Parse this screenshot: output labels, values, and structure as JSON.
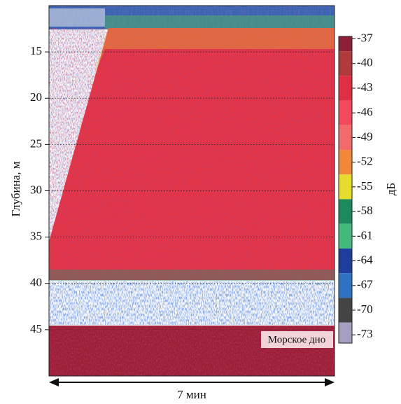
{
  "chart_data": {
    "type": "echogram",
    "ylabel": "Глубина, м",
    "xlabel": "7 мин",
    "ylim": [
      50,
      10
    ],
    "yticks": [
      15,
      20,
      25,
      30,
      35,
      40,
      45
    ],
    "grid": true,
    "colorbar": {
      "label": "дБ",
      "clim": [
        -36.7,
        -74
      ],
      "ticks": [
        -37,
        -40,
        -43,
        -46,
        -49,
        -52,
        -55,
        -58,
        -61,
        -64,
        -67,
        -70,
        -73
      ],
      "colors": [
        "#8c1f35",
        "#b03a3c",
        "#e02f42",
        "#f04a5c",
        "#f26a6a",
        "#f0883a",
        "#e6dc2c",
        "#1d8a5c",
        "#43b97c",
        "#1f3d9c",
        "#2f72c2",
        "#444444",
        "#a79fc2"
      ]
    },
    "annotation": "Морское дно"
  }
}
